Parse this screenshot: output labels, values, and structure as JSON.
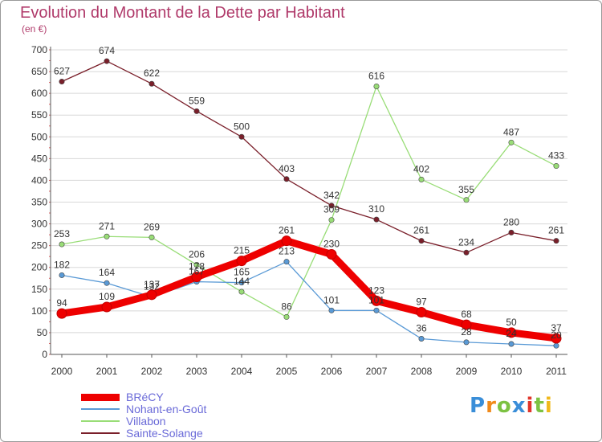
{
  "title": "Evolution du Montant de la Dette par Habitant",
  "unit": "(en €)",
  "logo": {
    "text": "Proxiti",
    "letters": [
      {
        "ch": "P",
        "color": "#3a8ed8"
      },
      {
        "ch": "r",
        "color": "#f08a1a"
      },
      {
        "ch": "o",
        "color": "#7cc242"
      },
      {
        "ch": "x",
        "color": "#3a8ed8"
      },
      {
        "ch": "i",
        "color": "#e0352b"
      },
      {
        "ch": "t",
        "color": "#7cc242"
      },
      {
        "ch": "i",
        "color": "#f0b81a"
      }
    ]
  },
  "chart_data": {
    "type": "line",
    "x": [
      "2000",
      "2001",
      "2002",
      "2003",
      "2004",
      "2005",
      "2006",
      "2007",
      "2008",
      "2009",
      "2010",
      "2011"
    ],
    "ylim": [
      0,
      700
    ],
    "yticks": [
      0,
      50,
      100,
      150,
      200,
      250,
      300,
      350,
      400,
      450,
      500,
      550,
      600,
      650,
      700
    ],
    "grid": true,
    "legend_position": "bottom-left",
    "series": [
      {
        "name": "BRéCY",
        "color": "#ee0000",
        "values": [
          94,
          109,
          137,
          178,
          215,
          261,
          230,
          123,
          97,
          68,
          50,
          37
        ]
      },
      {
        "name": "Nohant-en-Goût",
        "color": "#5a9ad6",
        "values": [
          182,
          164,
          132,
          167,
          165,
          213,
          101,
          101,
          36,
          28,
          24,
          20
        ]
      },
      {
        "name": "Villabon",
        "color": "#99dd77",
        "values": [
          253,
          271,
          269,
          206,
          144,
          86,
          309,
          616,
          402,
          355,
          487,
          433
        ]
      },
      {
        "name": "Sainte-Solange",
        "color": "#7a1f2a",
        "values": [
          627,
          674,
          622,
          559,
          500,
          403,
          342,
          310,
          261,
          234,
          280,
          261
        ]
      }
    ]
  }
}
